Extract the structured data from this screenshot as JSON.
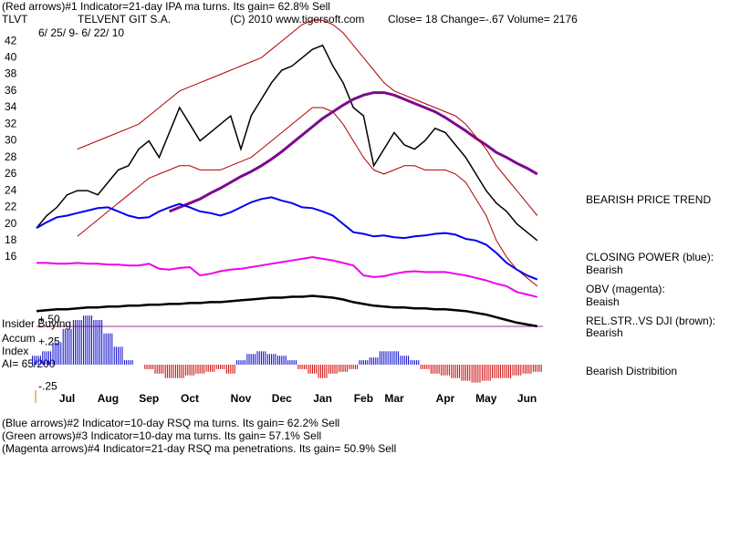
{
  "header": {
    "line1": "(Red arrows)#1 Indicator=21-day IPA ma turns. Its gain= 62.8% Sell",
    "ticker": "TLVT",
    "company": "TELVENT GIT S.A.",
    "copyright": "(C) 2010 www.tigersoft.com",
    "close": "Close=  18  Change=-.67 Volume= 2176",
    "dates": "6/ 25/ 9- 6/ 22/ 10"
  },
  "side_labels": [
    "BEARISH PRICE TREND",
    "CLOSING POWER (blue):",
    "Bearish",
    "OBV (magenta):",
    "Beaish",
    "REL.STR..VS DJI (brown):",
    "Bearish",
    "Bearish Distribition"
  ],
  "left_labels": [
    "Insider Buying",
    "Accum",
    "Index",
    "AI= 65/200"
  ],
  "footer": [
    "(Blue arrows)#2 Indicator=10-day RSQ ma turns. Its gain= 62.2% Sell",
    "(Green arrows)#3 Indicator=10-day ma turns. Its gain= 57.1% Sell",
    "(Magenta arrows)#4 Indicator=21-day RSQ ma penetrations. Its gain= 50.9% Sell"
  ],
  "chart_data": [
    {
      "type": "line",
      "ylim": [
        11,
        43
      ],
      "yticks": [
        16,
        18,
        20,
        22,
        24,
        26,
        28,
        30,
        32,
        34,
        36,
        38,
        40,
        42
      ],
      "categories": [
        null,
        null,
        null,
        "Jul",
        null,
        null,
        null,
        "Aug",
        null,
        null,
        null,
        "Sep",
        null,
        null,
        null,
        "Oct",
        null,
        null,
        null,
        null,
        "Nov",
        null,
        null,
        null,
        "Dec",
        null,
        null,
        null,
        "Jan",
        null,
        null,
        null,
        "Feb",
        null,
        null,
        "Mar",
        null,
        null,
        null,
        null,
        "Apr",
        null,
        null,
        null,
        "May",
        null,
        null,
        null,
        "Jun",
        null
      ],
      "series": [
        {
          "color": "#000000",
          "width": 1.5,
          "values": [
            19.5,
            21,
            22,
            23.5,
            24,
            24,
            23.5,
            25,
            26.5,
            27,
            29,
            30,
            28,
            31,
            34,
            32,
            30,
            31,
            32,
            33,
            29,
            33,
            35,
            37,
            38.5,
            39,
            40,
            41,
            41.5,
            39,
            37,
            34,
            33,
            27,
            29,
            31,
            29.5,
            29,
            30,
            31.5,
            31,
            29.5,
            28,
            26,
            24,
            22.5,
            21.5,
            20,
            19,
            18
          ]
        },
        {
          "color": "#7b0b8e",
          "width": 3,
          "values": [
            null,
            null,
            null,
            null,
            null,
            null,
            null,
            null,
            null,
            null,
            null,
            null,
            null,
            21.5,
            22,
            22.5,
            23,
            23.7,
            24.3,
            25,
            25.7,
            26.3,
            27,
            27.8,
            28.7,
            29.7,
            30.7,
            31.7,
            32.7,
            33.5,
            34.3,
            35,
            35.5,
            35.8,
            35.8,
            35.5,
            35,
            34.5,
            34,
            33.5,
            32.8,
            32,
            31.2,
            30.3,
            29.5,
            28.6,
            28,
            27.3,
            26.7,
            26
          ]
        },
        {
          "color": "#b00000",
          "width": 1,
          "values": [
            null,
            null,
            null,
            null,
            29,
            29.5,
            30,
            30.5,
            31,
            31.5,
            32,
            33,
            34,
            35,
            36,
            36.5,
            37,
            37.5,
            38,
            38.5,
            39,
            39.5,
            40,
            41,
            42,
            43,
            44,
            44.5,
            44.5,
            44,
            43,
            41.5,
            40,
            38.5,
            37,
            36,
            35.5,
            35,
            34.5,
            34,
            33.5,
            33,
            32,
            30.5,
            29,
            27,
            25.5,
            24,
            22.5,
            21
          ]
        },
        {
          "color": "#b00000",
          "width": 1,
          "values": [
            null,
            null,
            null,
            null,
            18.5,
            19.5,
            20.5,
            21.5,
            22.5,
            23.5,
            24.5,
            25.5,
            26,
            26.5,
            27,
            27,
            26.5,
            26.5,
            26.5,
            27,
            27.5,
            28,
            29,
            30,
            31,
            32,
            33,
            34,
            34,
            33.5,
            32,
            30,
            28,
            26.5,
            26,
            26.5,
            27,
            27,
            26.5,
            26.5,
            26.5,
            26,
            25,
            23,
            21,
            18,
            16,
            14.5,
            13.5,
            12.5
          ]
        },
        {
          "color": "#0000ee",
          "width": 2,
          "values": [
            19.5,
            20.2,
            20.8,
            21,
            21.3,
            21.6,
            21.9,
            22,
            21.5,
            21,
            20.7,
            20.8,
            21.5,
            22,
            22.4,
            22,
            21.5,
            21.3,
            21,
            21.4,
            22,
            22.6,
            23,
            23.2,
            22.8,
            22.5,
            22,
            21.9,
            21.5,
            21,
            20,
            19,
            18.8,
            18.5,
            18.6,
            18.4,
            18.3,
            18.5,
            18.6,
            18.8,
            18.9,
            18.7,
            18.2,
            18,
            17.5,
            16.5,
            15.3,
            14.5,
            13.8,
            13.3
          ]
        },
        {
          "color": "#ee00ee",
          "width": 2,
          "values": [
            15.3,
            15.3,
            15.2,
            15.2,
            15.3,
            15.2,
            15.2,
            15.1,
            15.1,
            15,
            15,
            15.2,
            14.6,
            14.5,
            14.7,
            14.8,
            13.8,
            14,
            14.3,
            14.5,
            14.6,
            14.8,
            15,
            15.2,
            15.4,
            15.6,
            15.8,
            16,
            15.8,
            15.6,
            15.3,
            15,
            13.8,
            13.6,
            13.7,
            14,
            14.2,
            14.3,
            14.2,
            14.2,
            14.2,
            14,
            13.8,
            13.5,
            13.2,
            12.8,
            12.5,
            11.8,
            11.5,
            11.2
          ]
        }
      ]
    },
    {
      "type": "bar",
      "ylim": [
        -0.31,
        0.8
      ],
      "yticks": [
        {
          "value": 0.5,
          "label": "+.50"
        },
        {
          "value": 0.25,
          "label": "+.25"
        },
        {
          "value": -0.25,
          "label": "-.25"
        }
      ],
      "pos_color": "#0000cc",
      "neg_color": "#cc0000",
      "values": [
        0.1,
        0.15,
        0.25,
        0.4,
        0.5,
        0.55,
        0.5,
        0.35,
        0.2,
        0.05,
        0,
        -0.05,
        -0.1,
        -0.15,
        -0.15,
        -0.12,
        -0.1,
        -0.08,
        -0.05,
        -0.1,
        0.05,
        0.12,
        0.15,
        0.12,
        0.1,
        0.05,
        -0.05,
        -0.1,
        -0.15,
        -0.1,
        -0.08,
        -0.05,
        0.05,
        0.08,
        0.15,
        0.15,
        0.1,
        0.05,
        -0.05,
        -0.1,
        -0.12,
        -0.15,
        -0.18,
        -0.2,
        -0.18,
        -0.15,
        -0.15,
        -0.12,
        -0.1,
        -0.08
      ],
      "series": [
        {
          "color": "#000000",
          "width": 2.5,
          "values": [
            0.6,
            0.61,
            0.62,
            0.62,
            0.63,
            0.64,
            0.64,
            0.65,
            0.65,
            0.66,
            0.66,
            0.67,
            0.67,
            0.68,
            0.68,
            0.69,
            0.69,
            0.7,
            0.7,
            0.71,
            0.72,
            0.73,
            0.74,
            0.75,
            0.75,
            0.76,
            0.76,
            0.77,
            0.76,
            0.75,
            0.73,
            0.7,
            0.68,
            0.66,
            0.65,
            0.64,
            0.64,
            0.63,
            0.63,
            0.62,
            0.62,
            0.61,
            0.6,
            0.58,
            0.56,
            0.53,
            0.5,
            0.47,
            0.45,
            0.43
          ]
        }
      ]
    }
  ]
}
